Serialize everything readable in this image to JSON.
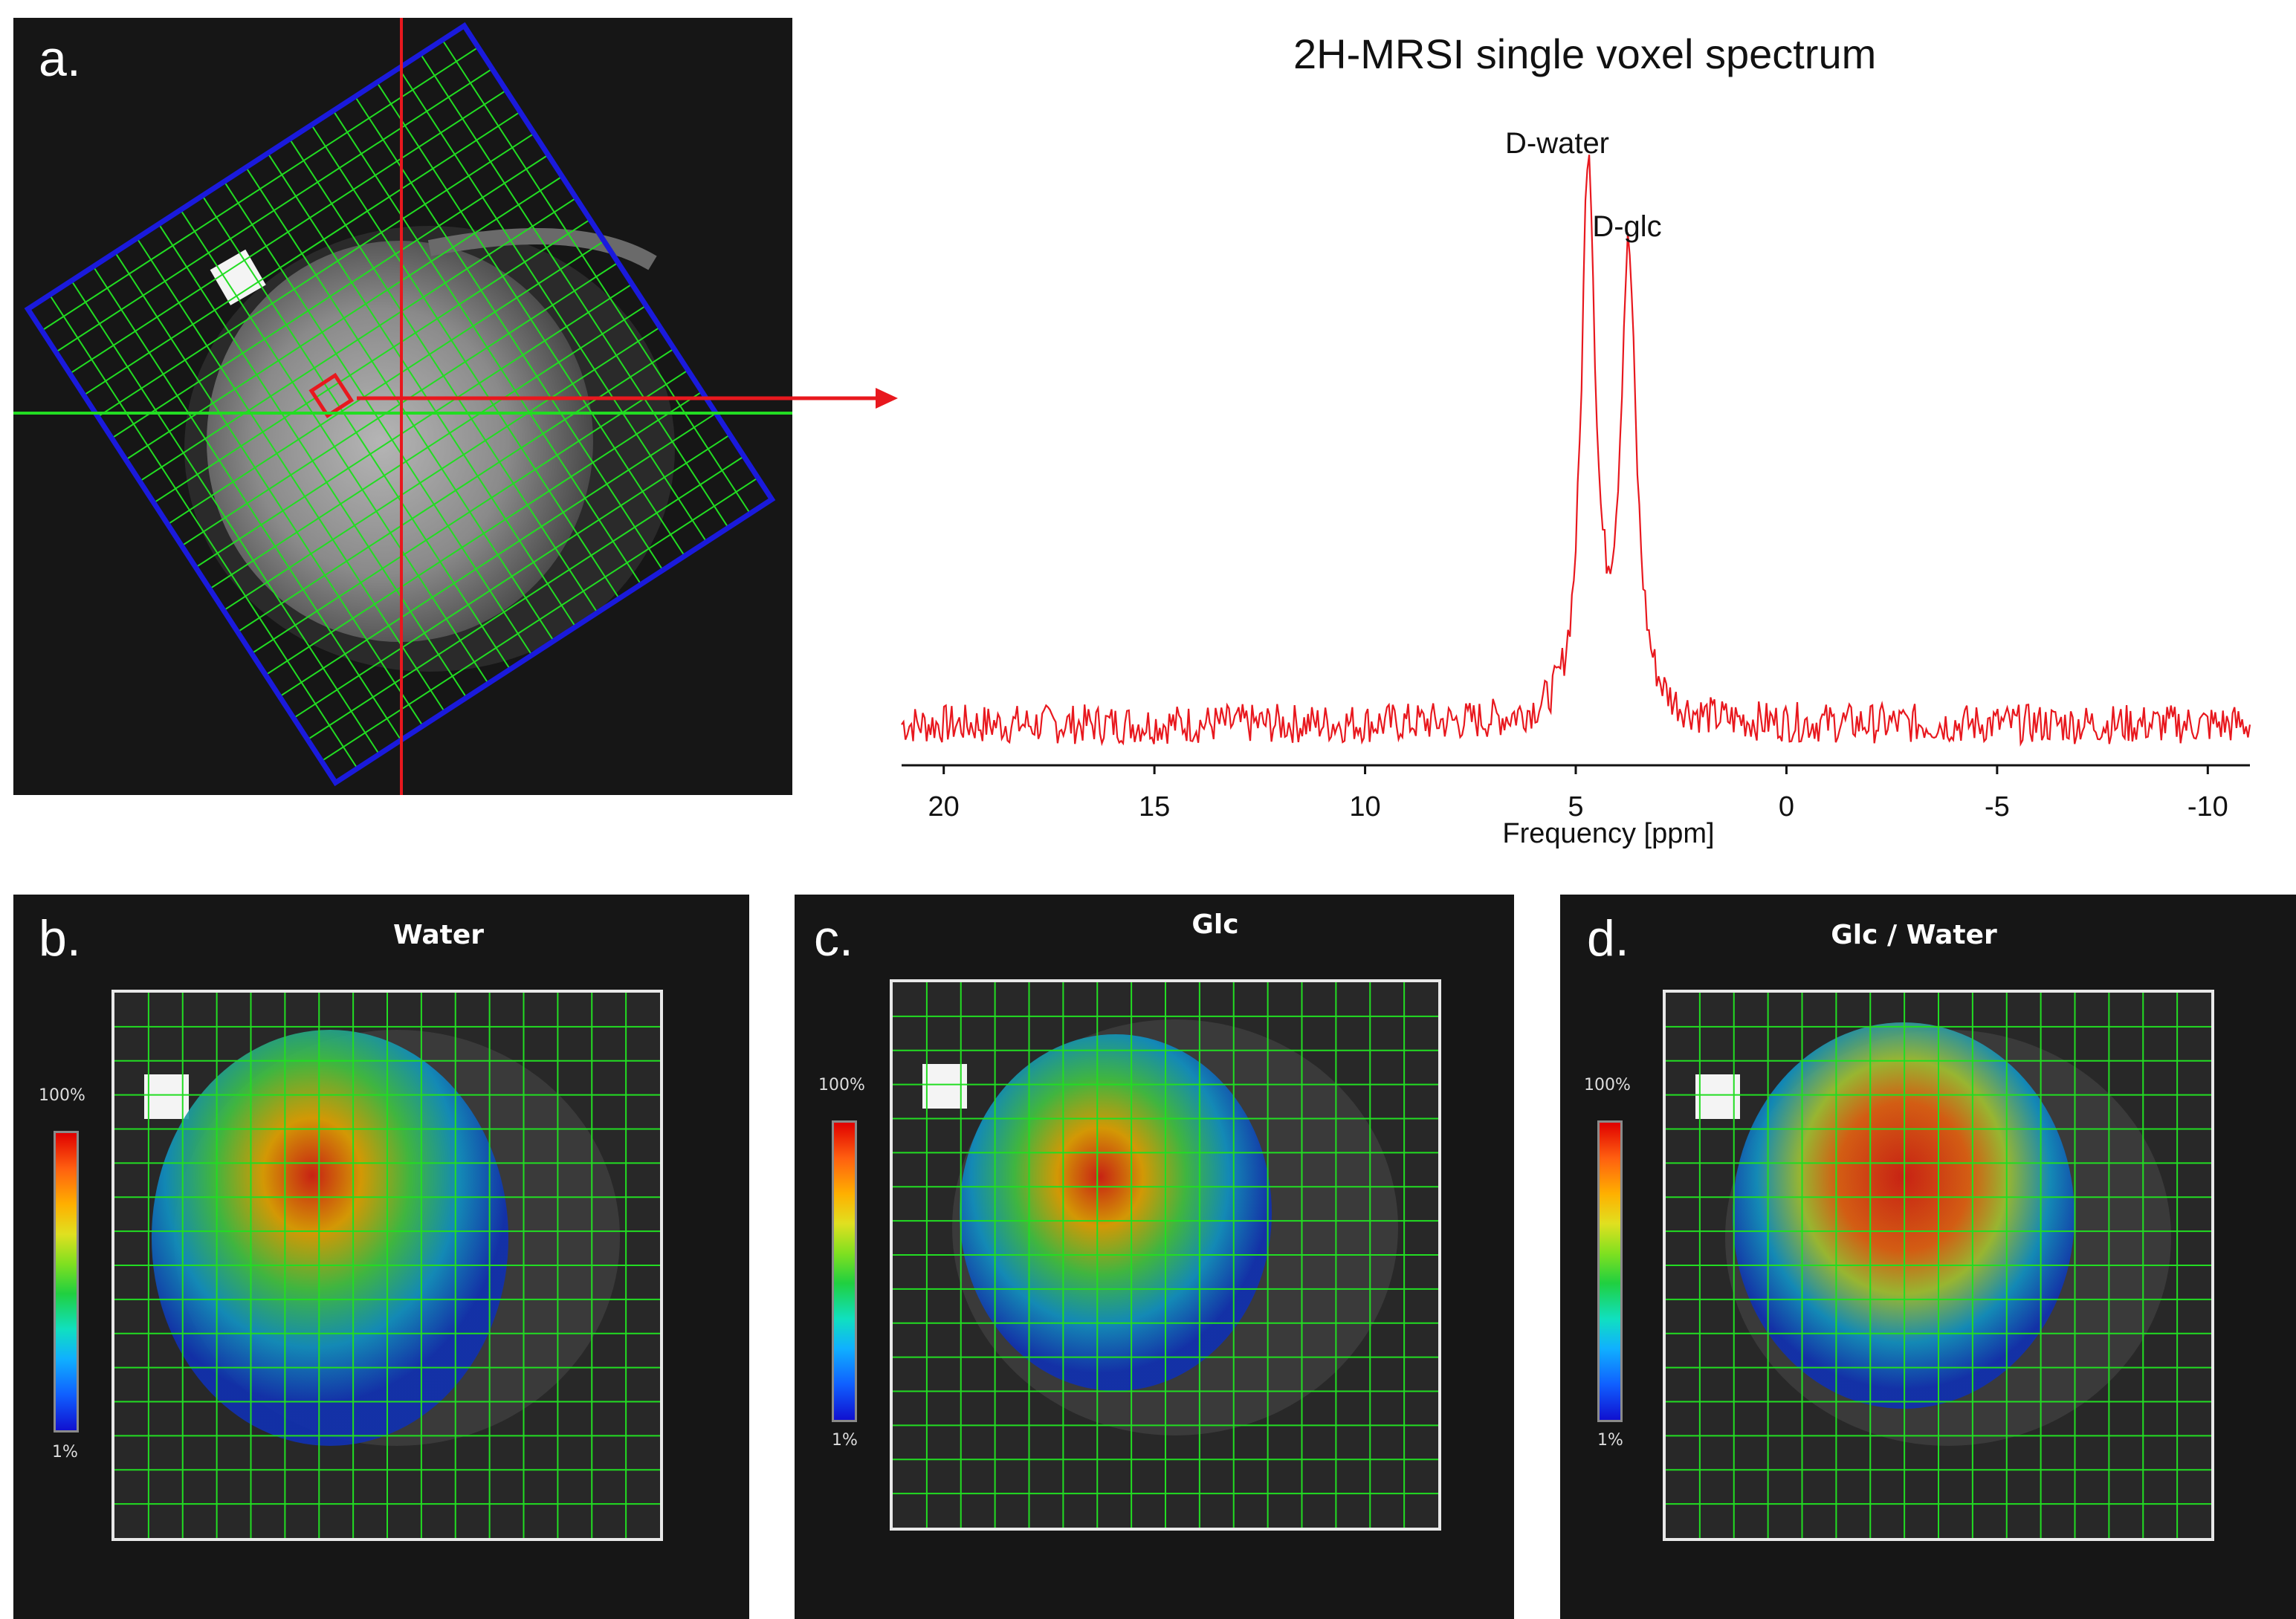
{
  "panel_a": {
    "letter": "a."
  },
  "panel_b": {
    "letter": "b.",
    "title": "Water",
    "scale_max": "100%",
    "scale_min": "1%"
  },
  "panel_c": {
    "letter": "c.",
    "title": "Glc",
    "scale_max": "100%",
    "scale_min": "1%"
  },
  "panel_d": {
    "letter": "d.",
    "title": "Glc / Water",
    "scale_max": "100%",
    "scale_min": "1%"
  },
  "colors": {
    "spectrum_line": "#e8181e",
    "grid": "#22dd22",
    "slab_outline": "#1a1adc",
    "pointer": "#e8181e"
  },
  "chart_data": {
    "type": "line",
    "title": "2H-MRSI single voxel spectrum",
    "xlabel": "Frequency [ppm]",
    "ylabel": "",
    "xlim": [
      21,
      -11
    ],
    "x_reversed": true,
    "x_ticks": [
      20,
      15,
      10,
      5,
      0,
      -5,
      -10
    ],
    "annotations": [
      {
        "text": "D-water",
        "x": 4.7
      },
      {
        "text": "D-glc",
        "x": 3.7
      }
    ],
    "peaks": [
      {
        "name": "D-water",
        "x": 4.7,
        "height": 0.98,
        "width": 0.35
      },
      {
        "name": "D-glc",
        "x": 3.75,
        "height": 0.8,
        "width": 0.4
      }
    ],
    "noise_level": 0.035,
    "grid": false
  }
}
